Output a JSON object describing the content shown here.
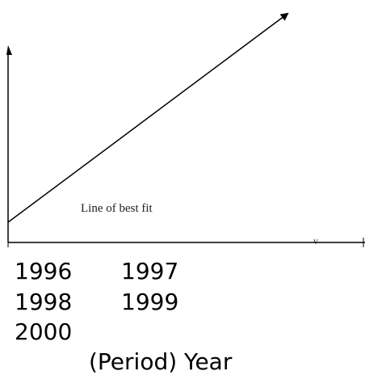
{
  "diagram": {
    "line_label": "Line of best fit",
    "axis_mark": "v",
    "years": [
      "1996",
      "1997",
      "1998",
      "1999",
      "2000"
    ],
    "x_axis_title": "(Period) Year"
  }
}
